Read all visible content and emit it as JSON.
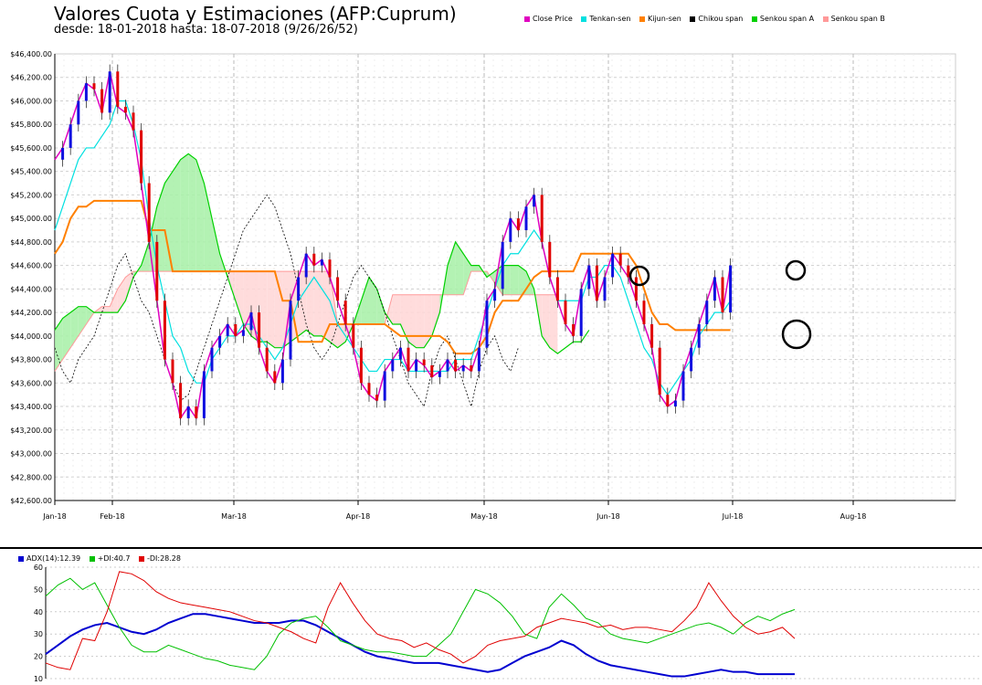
{
  "title": "Valores Cuota y Estimaciones (AFP:Cuprum)",
  "subtitle": "desde: 18-01-2018 hasta: 18-07-2018 (9/26/26/52)",
  "legend": [
    {
      "label": "Close Price",
      "color": "#e000c0"
    },
    {
      "label": "Tenkan-sen",
      "color": "#00e0e0"
    },
    {
      "label": "Kijun-sen",
      "color": "#ff8000"
    },
    {
      "label": "Chikou span",
      "color": "#000000"
    },
    {
      "label": "Senkou span A",
      "color": "#00d000"
    },
    {
      "label": "Senkou span B",
      "color": "#ff9999"
    }
  ],
  "adx_legend": [
    {
      "label": "ADX(14):12.39",
      "color": "#0000d0"
    },
    {
      "label": "+DI:40.7",
      "color": "#00c000"
    },
    {
      "label": "-DI:28.28",
      "color": "#e00000"
    }
  ],
  "chart_data": [
    {
      "type": "line",
      "title": "Valores Cuota y Estimaciones (AFP:Cuprum)",
      "ylim": [
        42600,
        46400
      ],
      "ytick_labels": [
        "$42,600.00",
        "$42,800.00",
        "$43,000.00",
        "$43,200.00",
        "$43,400.00",
        "$43,600.00",
        "$43,800.00",
        "$44,000.00",
        "$44,200.00",
        "$44,400.00",
        "$44,600.00",
        "$44,800.00",
        "$45,000.00",
        "$45,200.00",
        "$45,400.00",
        "$45,600.00",
        "$45,800.00",
        "$46,000.00",
        "$46,200.00",
        "$46,400.00"
      ],
      "xtick_labels": [
        "Jan-18",
        "Feb-18",
        "Mar-18",
        "Apr-18",
        "May-18",
        "Jun-18",
        "Jul-18",
        "Aug-18"
      ],
      "grid": true,
      "legend_position": "top-right",
      "series": [
        {
          "name": "Close Price",
          "values": [
            45500,
            45600,
            45800,
            46000,
            46150,
            46100,
            45900,
            46250,
            45950,
            45900,
            45750,
            45300,
            44800,
            44300,
            43800,
            43600,
            43300,
            43400,
            43300,
            43700,
            43900,
            44000,
            44100,
            44000,
            44050,
            44200,
            43900,
            43700,
            43600,
            43800,
            44300,
            44500,
            44700,
            44600,
            44650,
            44500,
            44300,
            44100,
            43900,
            43600,
            43500,
            43450,
            43700,
            43800,
            43900,
            43700,
            43800,
            43750,
            43650,
            43700,
            43800,
            43700,
            43750,
            43700,
            43900,
            44300,
            44400,
            44800,
            45000,
            44900,
            45100,
            45200,
            44800,
            44500,
            44300,
            44100,
            44000,
            44400,
            44600,
            44300,
            44500,
            44700,
            44600,
            44500,
            44300,
            44100,
            43900,
            43500,
            43400,
            43450,
            43700,
            43900,
            44100,
            44300,
            44500,
            44200,
            44600
          ]
        },
        {
          "name": "Tenkan-sen",
          "values": [
            44900,
            45100,
            45300,
            45500,
            45600,
            45600,
            45700,
            45800,
            46000,
            46000,
            45800,
            45500,
            45000,
            44600,
            44300,
            44000,
            43900,
            43700,
            43600,
            43600,
            43800,
            43900,
            44000,
            44000,
            44100,
            44100,
            44000,
            43900,
            43800,
            43900,
            44100,
            44300,
            44400,
            44500,
            44400,
            44300,
            44100,
            44000,
            43900,
            43800,
            43700,
            43700,
            43800,
            43800,
            43800,
            43700,
            43700,
            43700,
            43700,
            43700,
            43700,
            43800,
            43800,
            43800,
            44000,
            44200,
            44400,
            44600,
            44700,
            44700,
            44800,
            44900,
            44800,
            44500,
            44300,
            44300,
            44300,
            44300,
            44500,
            44500,
            44600,
            44600,
            44500,
            44300,
            44100,
            43900,
            43800,
            43600,
            43500,
            43600,
            43700,
            43800,
            44000,
            44100,
            44200,
            44200,
            44300
          ]
        },
        {
          "name": "Kijun-sen",
          "values": [
            44700,
            44800,
            45000,
            45100,
            45100,
            45150,
            45150,
            45150,
            45150,
            45150,
            45150,
            45150,
            44900,
            44900,
            44900,
            44550,
            44550,
            44550,
            44550,
            44550,
            44550,
            44550,
            44550,
            44550,
            44550,
            44550,
            44550,
            44550,
            44550,
            44300,
            44300,
            43950,
            43950,
            43950,
            43950,
            44100,
            44100,
            44100,
            44100,
            44100,
            44100,
            44100,
            44100,
            44050,
            44000,
            44000,
            44000,
            44000,
            44000,
            44000,
            43950,
            43850,
            43850,
            43850,
            43900,
            44000,
            44200,
            44300,
            44300,
            44300,
            44400,
            44500,
            44550,
            44550,
            44550,
            44550,
            44550,
            44700,
            44700,
            44700,
            44700,
            44700,
            44700,
            44700,
            44600,
            44400,
            44200,
            44100,
            44100,
            44050,
            44050,
            44050,
            44050,
            44050,
            44050,
            44050,
            44050
          ]
        },
        {
          "name": "Chikou span",
          "values": [
            43900,
            43700,
            43600,
            43800,
            43900,
            44000,
            44200,
            44400,
            44600,
            44700,
            44500,
            44300,
            44200,
            44000,
            43800,
            43600,
            43450,
            43500,
            43700,
            43900,
            44100,
            44300,
            44500,
            44700,
            44900,
            45000,
            45100,
            45200,
            45100,
            44900,
            44700,
            44400,
            44100,
            43900,
            43800,
            43900,
            44100,
            44300,
            44500,
            44600,
            44500,
            44400,
            44200,
            44000,
            43800,
            43600,
            43500,
            43400,
            43700,
            43900,
            44000,
            43800,
            43600,
            43400,
            43700,
            43900,
            44000,
            43800,
            43700,
            43900
          ]
        },
        {
          "name": "Senkou span A",
          "values": [
            44050,
            44150,
            44200,
            44250,
            44250,
            44200,
            44200,
            44200,
            44200,
            44300,
            44500,
            44600,
            44800,
            45100,
            45300,
            45400,
            45500,
            45550,
            45500,
            45300,
            45000,
            44700,
            44500,
            44300,
            44100,
            44000,
            43950,
            43950,
            43900,
            43900,
            43950,
            44000,
            44050,
            44000,
            44000,
            43950,
            43900,
            43950,
            44100,
            44300,
            44500,
            44400,
            44200,
            44100,
            44100,
            43950,
            43900,
            43900,
            44000,
            44200,
            44600,
            44800,
            44700,
            44600,
            44600,
            44500,
            44550,
            44600,
            44600,
            44600,
            44550,
            44400,
            44000,
            43900,
            43850,
            43900,
            43950,
            43950,
            44050
          ]
        },
        {
          "name": "Senkou span B",
          "values": [
            43700,
            43800,
            43900,
            44000,
            44100,
            44200,
            44250,
            44250,
            44400,
            44500,
            44550,
            44550,
            44550,
            44550,
            44550,
            44550,
            44550,
            44550,
            44550,
            44550,
            44550,
            44550,
            44550,
            44550,
            44550,
            44550,
            44550,
            44550,
            44550,
            44550,
            44550,
            44550,
            44550,
            44550,
            44550,
            44550,
            44100,
            44100,
            44100,
            44100,
            44100,
            44100,
            44100,
            44350,
            44350,
            44350,
            44350,
            44350,
            44350,
            44350,
            44350,
            44350,
            44350,
            44550,
            44550,
            44550,
            44450,
            44350,
            44350,
            44350,
            44350,
            44350,
            44350,
            44350,
            44350
          ]
        }
      ]
    },
    {
      "type": "line",
      "ylim": [
        10,
        60
      ],
      "ytick_labels": [
        "10",
        "20",
        "30",
        "40",
        "50",
        "60"
      ],
      "series": [
        {
          "name": "ADX(14):12.39",
          "values": [
            21,
            25,
            29,
            32,
            34,
            35,
            33,
            31,
            30,
            32,
            35,
            37,
            39,
            39,
            38,
            37,
            36,
            35,
            35,
            35,
            36,
            36,
            34,
            31,
            28,
            25,
            22,
            20,
            19,
            18,
            17,
            17,
            17,
            16,
            15,
            14,
            13,
            14,
            17,
            20,
            22,
            24,
            27,
            25,
            21,
            18,
            16,
            15,
            14,
            13,
            12,
            11,
            11,
            12,
            13,
            14,
            13,
            13,
            12,
            12,
            12,
            12
          ]
        },
        {
          "name": "+DI:40.7",
          "values": [
            47,
            52,
            55,
            50,
            53,
            43,
            33,
            25,
            22,
            22,
            25,
            23,
            21,
            19,
            18,
            16,
            15,
            14,
            20,
            30,
            35,
            37,
            38,
            33,
            27,
            25,
            23,
            22,
            22,
            21,
            20,
            20,
            25,
            30,
            40,
            50,
            48,
            44,
            38,
            30,
            28,
            42,
            48,
            43,
            37,
            35,
            30,
            28,
            27,
            26,
            28,
            30,
            32,
            34,
            35,
            33,
            30,
            35,
            38,
            36,
            39,
            41
          ]
        },
        {
          "name": "-DI:28.28",
          "values": [
            17,
            15,
            14,
            28,
            27,
            40,
            58,
            57,
            54,
            49,
            46,
            44,
            43,
            42,
            41,
            40,
            38,
            36,
            35,
            33,
            31,
            28,
            26,
            42,
            53,
            44,
            36,
            30,
            28,
            27,
            24,
            26,
            23,
            21,
            17,
            20,
            25,
            27,
            28,
            29,
            33,
            35,
            37,
            36,
            35,
            33,
            34,
            32,
            33,
            33,
            32,
            31,
            36,
            42,
            53,
            45,
            38,
            33,
            30,
            31,
            33,
            28
          ]
        }
      ]
    }
  ]
}
